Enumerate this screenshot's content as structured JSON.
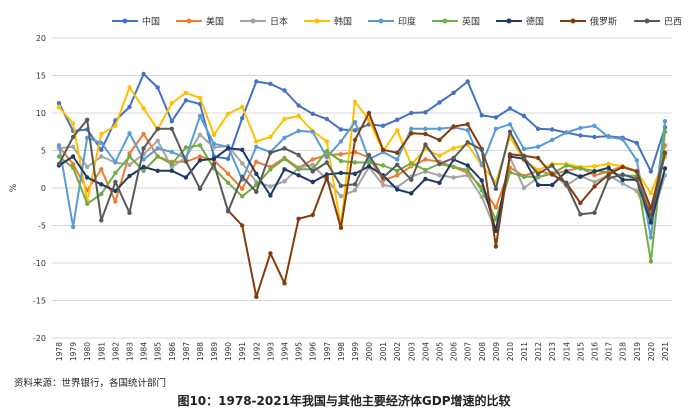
{
  "source_note": "资料来源：世界银行，各国统计部门",
  "caption": "图10：1978-2021年我国与其他主要经济体GDP增速的比较",
  "chart_data": {
    "type": "line",
    "title": "",
    "xlabel": "",
    "ylabel": "%",
    "ylim": [
      -20,
      20
    ],
    "yticks": [
      20,
      15,
      10,
      5,
      0,
      -5,
      -10,
      -15,
      -20
    ],
    "grid": true,
    "legend_position": "top",
    "x": [
      "1978",
      "1979",
      "1980",
      "1981",
      "1982",
      "1983",
      "1984",
      "1985",
      "1986",
      "1987",
      "1988",
      "1989",
      "1990",
      "1991",
      "1992",
      "1993",
      "1994",
      "1995",
      "1996",
      "1997",
      "1998",
      "1999",
      "2000",
      "2001",
      "2002",
      "2003",
      "2004",
      "2005",
      "2006",
      "2007",
      "2008",
      "2009",
      "2010",
      "2011",
      "2012",
      "2013",
      "2014",
      "2015",
      "2016",
      "2017",
      "2018",
      "2019",
      "2020",
      "2021"
    ],
    "series": [
      {
        "name": "中国",
        "color": "#4472C4",
        "values": [
          11.3,
          7.6,
          7.8,
          5.1,
          9.0,
          10.8,
          15.2,
          13.4,
          8.9,
          11.7,
          11.2,
          4.2,
          3.9,
          9.3,
          14.2,
          13.9,
          13.0,
          11.0,
          9.9,
          9.2,
          7.8,
          7.7,
          8.5,
          8.3,
          9.1,
          10.0,
          10.1,
          11.4,
          12.7,
          14.2,
          9.7,
          9.4,
          10.6,
          9.6,
          7.9,
          7.8,
          7.4,
          7.0,
          6.8,
          6.9,
          6.7,
          6.0,
          2.2,
          8.1
        ]
      },
      {
        "name": "美国",
        "color": "#ED7D31",
        "values": [
          5.5,
          3.2,
          -0.3,
          2.5,
          -1.8,
          4.6,
          7.2,
          4.2,
          3.5,
          3.5,
          4.2,
          3.7,
          1.9,
          -0.1,
          3.5,
          2.8,
          4.0,
          2.7,
          3.8,
          4.4,
          4.5,
          4.8,
          4.1,
          1.0,
          1.7,
          2.9,
          3.8,
          3.5,
          2.8,
          2.0,
          0.1,
          -2.6,
          2.7,
          1.6,
          2.3,
          1.8,
          2.3,
          2.7,
          1.7,
          2.2,
          2.9,
          2.3,
          -3.4,
          5.7
        ]
      },
      {
        "name": "日本",
        "color": "#A5A5A5",
        "values": [
          5.3,
          5.5,
          2.8,
          4.2,
          3.4,
          3.1,
          4.5,
          6.3,
          2.8,
          4.1,
          7.1,
          5.4,
          5.6,
          3.3,
          0.8,
          0.2,
          0.9,
          2.7,
          3.1,
          1.1,
          -1.1,
          -0.3,
          2.8,
          0.4,
          0.1,
          1.5,
          2.2,
          1.7,
          1.4,
          1.7,
          -1.2,
          -5.7,
          4.1,
          0.0,
          1.4,
          2.0,
          0.3,
          1.6,
          0.8,
          1.7,
          0.6,
          -0.4,
          -4.5,
          1.7
        ]
      },
      {
        "name": "韩国",
        "color": "#FFC000",
        "values": [
          10.8,
          8.6,
          -1.7,
          7.2,
          8.3,
          13.4,
          10.6,
          7.8,
          11.3,
          12.7,
          12.0,
          7.1,
          9.9,
          10.8,
          6.2,
          6.8,
          9.2,
          9.6,
          7.6,
          6.2,
          -5.1,
          11.5,
          9.1,
          4.9,
          7.7,
          3.1,
          5.2,
          4.3,
          5.3,
          5.8,
          3.0,
          0.8,
          6.8,
          3.7,
          2.4,
          3.2,
          3.2,
          2.8,
          2.9,
          3.2,
          2.9,
          2.2,
          -0.7,
          4.1
        ]
      },
      {
        "name": "印度",
        "color": "#5B9BD5",
        "values": [
          5.7,
          -5.2,
          6.7,
          6.0,
          3.5,
          7.3,
          3.8,
          5.3,
          4.8,
          4.0,
          9.6,
          5.9,
          5.5,
          1.1,
          5.5,
          4.8,
          6.7,
          7.6,
          7.5,
          4.1,
          6.2,
          8.8,
          3.8,
          4.8,
          3.8,
          7.9,
          7.9,
          7.9,
          8.1,
          7.7,
          3.1,
          7.9,
          8.5,
          5.2,
          5.5,
          6.4,
          7.4,
          8.0,
          8.3,
          6.8,
          6.5,
          3.7,
          -6.6,
          8.9
        ]
      },
      {
        "name": "英国",
        "color": "#70AD47",
        "values": [
          4.2,
          2.7,
          -2.1,
          -0.8,
          2.0,
          4.2,
          2.3,
          4.2,
          3.2,
          5.4,
          5.7,
          2.6,
          0.7,
          -1.1,
          0.4,
          2.5,
          3.9,
          2.5,
          2.5,
          4.9,
          3.6,
          3.4,
          3.4,
          3.0,
          2.3,
          3.3,
          2.4,
          3.2,
          2.8,
          2.4,
          -0.3,
          -4.2,
          2.1,
          1.5,
          1.5,
          1.9,
          3.0,
          2.6,
          2.3,
          2.1,
          1.7,
          1.6,
          -9.8,
          7.5
        ]
      },
      {
        "name": "德国",
        "color": "#203864",
        "values": [
          3.0,
          4.2,
          1.4,
          0.5,
          -0.4,
          1.6,
          2.8,
          2.3,
          2.3,
          1.4,
          3.7,
          3.9,
          5.3,
          5.1,
          1.9,
          -1.0,
          2.5,
          1.7,
          0.8,
          1.8,
          2.0,
          1.9,
          2.9,
          1.7,
          -0.2,
          -0.7,
          1.2,
          0.7,
          3.8,
          3.0,
          1.0,
          -5.7,
          4.2,
          3.9,
          0.4,
          0.4,
          2.2,
          1.5,
          2.2,
          2.7,
          1.1,
          1.1,
          -4.6,
          2.6
        ]
      },
      {
        "name": "俄罗斯",
        "color": "#843C0C",
        "values": [
          null,
          null,
          null,
          null,
          null,
          null,
          null,
          null,
          null,
          null,
          null,
          null,
          -3.0,
          -5.0,
          -14.5,
          -8.7,
          -12.7,
          -4.1,
          -3.6,
          1.4,
          -5.3,
          6.4,
          10.0,
          5.1,
          4.7,
          7.3,
          7.2,
          6.4,
          8.2,
          8.5,
          5.2,
          -7.8,
          4.5,
          4.3,
          4.0,
          1.8,
          0.7,
          -2.0,
          0.2,
          1.8,
          2.8,
          2.2,
          -2.7,
          4.7
        ]
      },
      {
        "name": "巴西",
        "color": "#595959",
        "values": [
          3.2,
          6.8,
          9.1,
          -4.3,
          0.8,
          -3.3,
          5.3,
          7.9,
          7.9,
          3.6,
          -0.1,
          3.2,
          -3.1,
          1.5,
          -0.5,
          4.7,
          5.3,
          4.4,
          2.2,
          3.4,
          0.3,
          0.5,
          4.4,
          1.4,
          3.1,
          1.1,
          5.8,
          3.2,
          4.0,
          6.1,
          5.1,
          -0.1,
          7.5,
          4.0,
          1.9,
          3.0,
          0.5,
          -3.5,
          -3.3,
          1.3,
          1.8,
          1.2,
          -3.9,
          4.6
        ]
      }
    ]
  }
}
